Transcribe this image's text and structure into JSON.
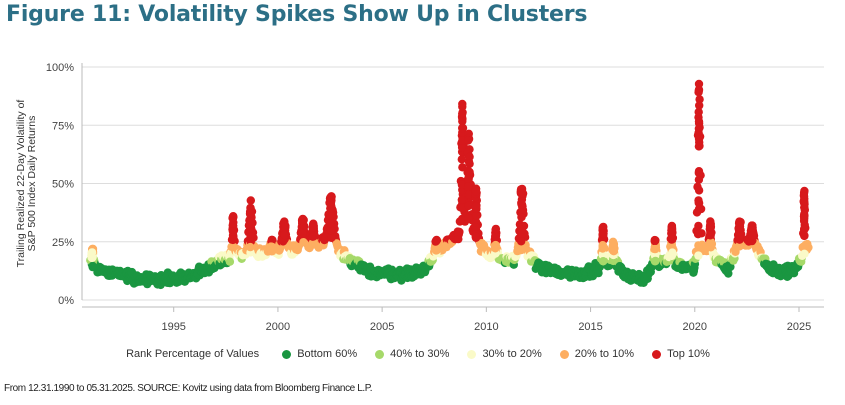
{
  "title": "Figure 11: Volatility Spikes Show Up in Clusters",
  "source_note": "From 12.31.1990 to 05.31.2025. SOURCE: Kovitz using data from Bloomberg Finance L.P.",
  "chart_data": {
    "type": "scatter",
    "title": "Figure 11: Volatility Spikes Show Up in Clusters",
    "ylabel_lines": [
      "Trailing Realized 22-Day Volatility of",
      "S&P 500 Index Daily Returns"
    ],
    "xlabel": "",
    "xlim": [
      1990.6,
      2026.2
    ],
    "ylim": [
      0,
      100
    ],
    "x_ticks": [
      1995,
      2000,
      2005,
      2010,
      2015,
      2020,
      2025
    ],
    "x_tick_labels": [
      "1995",
      "2000",
      "2005",
      "2010",
      "2015",
      "2020",
      "2025"
    ],
    "y_ticks": [
      0,
      25,
      50,
      75,
      100
    ],
    "y_tick_labels": [
      "0%",
      "25%",
      "50%",
      "75%",
      "100%"
    ],
    "grid": "horizontal",
    "legend": {
      "title": "Rank Percentage of Values",
      "placement": "bottom",
      "entries": [
        {
          "label": "Bottom 60%",
          "color": "#1a9641",
          "max": 16
        },
        {
          "label": "40% to 30%",
          "color": "#a6d96a",
          "max": 18
        },
        {
          "label": "30% to 20%",
          "color": "#fafac8",
          "max": 20.5
        },
        {
          "label": "20% to 10%",
          "color": "#fdae61",
          "max": 25
        },
        {
          "label": "Top 10%",
          "color": "#d7191c",
          "max": 1000
        }
      ]
    },
    "baseline_levels": [
      [
        1991.0,
        14
      ],
      [
        1992.5,
        11
      ],
      [
        1993.5,
        9
      ],
      [
        1995.0,
        9
      ],
      [
        1996.0,
        11
      ],
      [
        1997.0,
        15
      ],
      [
        1998.0,
        20
      ],
      [
        1999.5,
        20
      ],
      [
        2001.0,
        22
      ],
      [
        2002.5,
        26
      ],
      [
        2003.5,
        16
      ],
      [
        2004.5,
        12
      ],
      [
        2006.0,
        11
      ],
      [
        2007.0,
        13
      ],
      [
        2007.6,
        20
      ],
      [
        2008.5,
        28
      ],
      [
        2009.5,
        25
      ],
      [
        2010.3,
        18
      ],
      [
        2011.0,
        17
      ],
      [
        2012.0,
        20
      ],
      [
        2012.6,
        14
      ],
      [
        2013.5,
        12
      ],
      [
        2014.5,
        11
      ],
      [
        2015.5,
        14
      ],
      [
        2016.0,
        17
      ],
      [
        2016.6,
        12
      ],
      [
        2017.5,
        8
      ],
      [
        2018.1,
        16
      ],
      [
        2018.8,
        17
      ],
      [
        2019.5,
        14
      ],
      [
        2020.0,
        14
      ],
      [
        2020.5,
        22
      ],
      [
        2021.0,
        18
      ],
      [
        2021.6,
        13
      ],
      [
        2022.0,
        22
      ],
      [
        2022.8,
        25
      ],
      [
        2023.5,
        14
      ],
      [
        2024.0,
        12
      ],
      [
        2024.7,
        13
      ],
      [
        2025.1,
        17
      ],
      [
        2025.4,
        22
      ]
    ],
    "spikes": [
      {
        "x": 1991.1,
        "peak": 22,
        "width": 0.15
      },
      {
        "x": 1997.85,
        "peak": 36,
        "width": 0.1
      },
      {
        "x": 1998.7,
        "peak": 43,
        "width": 0.18
      },
      {
        "x": 1999.7,
        "peak": 26,
        "width": 0.2
      },
      {
        "x": 2000.3,
        "peak": 34,
        "width": 0.2
      },
      {
        "x": 2001.2,
        "peak": 35,
        "width": 0.2
      },
      {
        "x": 2001.7,
        "peak": 33,
        "width": 0.12
      },
      {
        "x": 2002.55,
        "peak": 45,
        "width": 0.25
      },
      {
        "x": 2007.6,
        "peak": 26,
        "width": 0.15
      },
      {
        "x": 2008.85,
        "peak": 88,
        "width": 0.12
      },
      {
        "x": 2009.15,
        "peak": 72,
        "width": 0.2
      },
      {
        "x": 2009.5,
        "peak": 48,
        "width": 0.15
      },
      {
        "x": 2010.45,
        "peak": 31,
        "width": 0.12
      },
      {
        "x": 2011.7,
        "peak": 49,
        "width": 0.2
      },
      {
        "x": 2015.6,
        "peak": 32,
        "width": 0.12
      },
      {
        "x": 2016.1,
        "peak": 25,
        "width": 0.12
      },
      {
        "x": 2018.1,
        "peak": 26,
        "width": 0.12
      },
      {
        "x": 2018.9,
        "peak": 32,
        "width": 0.12
      },
      {
        "x": 2020.2,
        "peak": 94,
        "width": 0.14
      },
      {
        "x": 2020.75,
        "peak": 34,
        "width": 0.12
      },
      {
        "x": 2022.15,
        "peak": 34,
        "width": 0.15
      },
      {
        "x": 2022.75,
        "peak": 32,
        "width": 0.15
      },
      {
        "x": 2025.25,
        "peak": 47,
        "width": 0.08
      }
    ]
  }
}
